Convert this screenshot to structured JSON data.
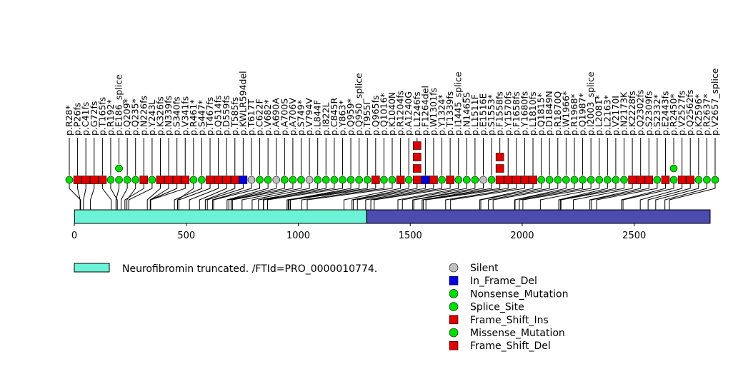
{
  "chart_data": {
    "type": "lollipop",
    "title": "",
    "xlabel": "",
    "ylabel": "",
    "xlim": [
      0,
      2839
    ],
    "x_ticks": [
      0,
      500,
      1000,
      1500,
      2000,
      2500
    ],
    "domains": [
      {
        "name": "Neurofibromin truncated. /FTId=PRO_0000010774.",
        "start": 1,
        "end": 1305,
        "color": "#6cf2d6"
      },
      {
        "name": "",
        "start": 1306,
        "end": 2839,
        "color": "#4c4caf"
      }
    ],
    "variant_types": [
      {
        "name": "Silent",
        "shape": "circle",
        "color": "#c0c0c0"
      },
      {
        "name": "In_Frame_Del",
        "shape": "square",
        "color": "#0000e0"
      },
      {
        "name": "Nonsense_Mutation",
        "shape": "circle",
        "color": "#00e000"
      },
      {
        "name": "Splice_Site",
        "shape": "circle",
        "color": "#00e000"
      },
      {
        "name": "Frame_Shift_Ins",
        "shape": "square",
        "color": "#e00000"
      },
      {
        "name": "Missense_Mutation",
        "shape": "circle",
        "color": "#00e000"
      },
      {
        "name": "Frame_Shift_Del",
        "shape": "square",
        "color": "#e00000"
      }
    ],
    "mutations": [
      {
        "label": "p.R28*",
        "pos": 28,
        "type": "Nonsense_Mutation",
        "count": 1
      },
      {
        "label": "p.P26fs",
        "pos": 26,
        "type": "Frame_Shift_Del",
        "count": 1
      },
      {
        "label": "p.C41fs",
        "pos": 41,
        "type": "Frame_Shift_Del",
        "count": 1
      },
      {
        "label": "p.G72fs",
        "pos": 72,
        "type": "Frame_Shift_Del",
        "count": 1
      },
      {
        "label": "p.T165fs",
        "pos": 165,
        "type": "Frame_Shift_Del",
        "count": 1
      },
      {
        "label": "p.R192*",
        "pos": 192,
        "type": "Nonsense_Mutation",
        "count": 1
      },
      {
        "label": "p.E186_splice",
        "pos": 186,
        "type": "Splice_Site",
        "count": 2
      },
      {
        "label": "p.Q209*",
        "pos": 209,
        "type": "Nonsense_Mutation",
        "count": 1
      },
      {
        "label": "p.Q235*",
        "pos": 235,
        "type": "Nonsense_Mutation",
        "count": 1
      },
      {
        "label": "p.N226fs",
        "pos": 226,
        "type": "Frame_Shift_Del",
        "count": 1
      },
      {
        "label": "p.Y243L",
        "pos": 243,
        "type": "Missense_Mutation",
        "count": 1
      },
      {
        "label": "p.K326fs",
        "pos": 326,
        "type": "Frame_Shift_Del",
        "count": 1
      },
      {
        "label": "p.N339fs",
        "pos": 339,
        "type": "Frame_Shift_Del",
        "count": 1
      },
      {
        "label": "p.S340fs",
        "pos": 340,
        "type": "Frame_Shift_Del",
        "count": 1
      },
      {
        "label": "p.V341fs",
        "pos": 341,
        "type": "Frame_Shift_Del",
        "count": 1
      },
      {
        "label": "p.R461*",
        "pos": 461,
        "type": "Nonsense_Mutation",
        "count": 1
      },
      {
        "label": "p.S447*",
        "pos": 447,
        "type": "Nonsense_Mutation",
        "count": 1
      },
      {
        "label": "p.T467fs",
        "pos": 467,
        "type": "Frame_Shift_Del",
        "count": 1
      },
      {
        "label": "p.Q514fs",
        "pos": 514,
        "type": "Frame_Shift_Del",
        "count": 1
      },
      {
        "label": "p.D559fs",
        "pos": 559,
        "type": "Frame_Shift_Del",
        "count": 1
      },
      {
        "label": "p.T585fs",
        "pos": 585,
        "type": "Frame_Shift_Del",
        "count": 1
      },
      {
        "label": "p.KWLR594del",
        "pos": 594,
        "type": "In_Frame_Del",
        "count": 1
      },
      {
        "label": "p.T617T",
        "pos": 617,
        "type": "Silent",
        "count": 1
      },
      {
        "label": "p.C622F",
        "pos": 622,
        "type": "Missense_Mutation",
        "count": 1
      },
      {
        "label": "p.V682*",
        "pos": 682,
        "type": "Nonsense_Mutation",
        "count": 1
      },
      {
        "label": "p.A690A",
        "pos": 690,
        "type": "Silent",
        "count": 1
      },
      {
        "label": "p.A700S",
        "pos": 700,
        "type": "Missense_Mutation",
        "count": 1
      },
      {
        "label": "p.A706V",
        "pos": 706,
        "type": "Missense_Mutation",
        "count": 1
      },
      {
        "label": "p.S749*",
        "pos": 749,
        "type": "Nonsense_Mutation",
        "count": 1
      },
      {
        "label": "p.V794V",
        "pos": 794,
        "type": "Silent",
        "count": 1
      },
      {
        "label": "p.L844F",
        "pos": 844,
        "type": "Missense_Mutation",
        "count": 1
      },
      {
        "label": "p.I822L",
        "pos": 822,
        "type": "Missense_Mutation",
        "count": 1
      },
      {
        "label": "p.C845R",
        "pos": 845,
        "type": "Missense_Mutation",
        "count": 1
      },
      {
        "label": "p.Y863*",
        "pos": 863,
        "type": "Nonsense_Mutation",
        "count": 1
      },
      {
        "label": "p.Q959*",
        "pos": 959,
        "type": "Nonsense_Mutation",
        "count": 1
      },
      {
        "label": "p.Q950_splice",
        "pos": 950,
        "type": "Splice_Site",
        "count": 1
      },
      {
        "label": "p.T955I",
        "pos": 955,
        "type": "Missense_Mutation",
        "count": 1
      },
      {
        "label": "p.Q965fs",
        "pos": 965,
        "type": "Frame_Shift_Del",
        "count": 1
      },
      {
        "label": "p.Q1016*",
        "pos": 1016,
        "type": "Nonsense_Mutation",
        "count": 1
      },
      {
        "label": "p.K1040N",
        "pos": 1040,
        "type": "Missense_Mutation",
        "count": 1
      },
      {
        "label": "p.R1204fs",
        "pos": 1204,
        "type": "Frame_Shift_Del",
        "count": 1
      },
      {
        "label": "p.A1240G",
        "pos": 1240,
        "type": "Missense_Mutation",
        "count": 1
      },
      {
        "label": "p.L1246fs",
        "pos": 1246,
        "type": "Frame_Shift_Del",
        "count": 4
      },
      {
        "label": "p.F1264del",
        "pos": 1264,
        "type": "In_Frame_Del",
        "count": 1
      },
      {
        "label": "p.W1301fs",
        "pos": 1301,
        "type": "Frame_Shift_Del",
        "count": 1
      },
      {
        "label": "p.Y1324*",
        "pos": 1324,
        "type": "Nonsense_Mutation",
        "count": 1
      },
      {
        "label": "p.T1339fs",
        "pos": 1339,
        "type": "Frame_Shift_Del",
        "count": 1
      },
      {
        "label": "p.I1445_splice",
        "pos": 1445,
        "type": "Splice_Site",
        "count": 1
      },
      {
        "label": "p.N1465S",
        "pos": 1465,
        "type": "Missense_Mutation",
        "count": 1
      },
      {
        "label": "p.L1511F",
        "pos": 1511,
        "type": "Missense_Mutation",
        "count": 1
      },
      {
        "label": "p.E1516E",
        "pos": 1516,
        "type": "Silent",
        "count": 1
      },
      {
        "label": "p.S1553*",
        "pos": 1553,
        "type": "Nonsense_Mutation",
        "count": 1
      },
      {
        "label": "p.F1558fs",
        "pos": 1558,
        "type": "Frame_Shift_Del",
        "count": 3
      },
      {
        "label": "p.Y1570fs",
        "pos": 1570,
        "type": "Frame_Shift_Del",
        "count": 1
      },
      {
        "label": "p.F1658fs",
        "pos": 1658,
        "type": "Frame_Shift_Del",
        "count": 1
      },
      {
        "label": "p.Y1680fs",
        "pos": 1680,
        "type": "Frame_Shift_Del",
        "count": 1
      },
      {
        "label": "p.L1810fs",
        "pos": 1810,
        "type": "Frame_Shift_Del",
        "count": 1
      },
      {
        "label": "p.Q1815*",
        "pos": 1815,
        "type": "Nonsense_Mutation",
        "count": 1
      },
      {
        "label": "p.D1849N",
        "pos": 1849,
        "type": "Missense_Mutation",
        "count": 1
      },
      {
        "label": "p.R1870Q",
        "pos": 1870,
        "type": "Missense_Mutation",
        "count": 1
      },
      {
        "label": "p.W1966*",
        "pos": 1966,
        "type": "Nonsense_Mutation",
        "count": 1
      },
      {
        "label": "p.R1968*",
        "pos": 1968,
        "type": "Nonsense_Mutation",
        "count": 1
      },
      {
        "label": "p.Q1987*",
        "pos": 1987,
        "type": "Nonsense_Mutation",
        "count": 1
      },
      {
        "label": "p.I2003_splice",
        "pos": 2003,
        "type": "Splice_Site",
        "count": 1
      },
      {
        "label": "p.L2081*",
        "pos": 2081,
        "type": "Nonsense_Mutation",
        "count": 1
      },
      {
        "label": "p.L2163*",
        "pos": 2163,
        "type": "Nonsense_Mutation",
        "count": 1
      },
      {
        "label": "p.V2170I",
        "pos": 2170,
        "type": "Missense_Mutation",
        "count": 1
      },
      {
        "label": "p.N2173K",
        "pos": 2173,
        "type": "Missense_Mutation",
        "count": 1
      },
      {
        "label": "p.K2228fs",
        "pos": 2228,
        "type": "Frame_Shift_Del",
        "count": 1
      },
      {
        "label": "p.Q2302fs",
        "pos": 2302,
        "type": "Frame_Shift_Del",
        "count": 1
      },
      {
        "label": "p.S2309fs",
        "pos": 2309,
        "type": "Frame_Shift_Del",
        "count": 1
      },
      {
        "label": "p.S2332*",
        "pos": 2332,
        "type": "Nonsense_Mutation",
        "count": 1
      },
      {
        "label": "p.E2443fs",
        "pos": 2443,
        "type": "Frame_Shift_Del",
        "count": 1
      },
      {
        "label": "p.R2450*",
        "pos": 2450,
        "type": "Nonsense_Mutation",
        "count": 2
      },
      {
        "label": "p.V2527fs",
        "pos": 2527,
        "type": "Frame_Shift_Del",
        "count": 1
      },
      {
        "label": "p.Q2562fs",
        "pos": 2562,
        "type": "Frame_Shift_Del",
        "count": 1
      },
      {
        "label": "p.K2596*",
        "pos": 2596,
        "type": "Nonsense_Mutation",
        "count": 1
      },
      {
        "label": "p.R2637*",
        "pos": 2637,
        "type": "Nonsense_Mutation",
        "count": 1
      },
      {
        "label": "p.V2657_splice",
        "pos": 2657,
        "type": "Splice_Site",
        "count": 1
      }
    ]
  }
}
